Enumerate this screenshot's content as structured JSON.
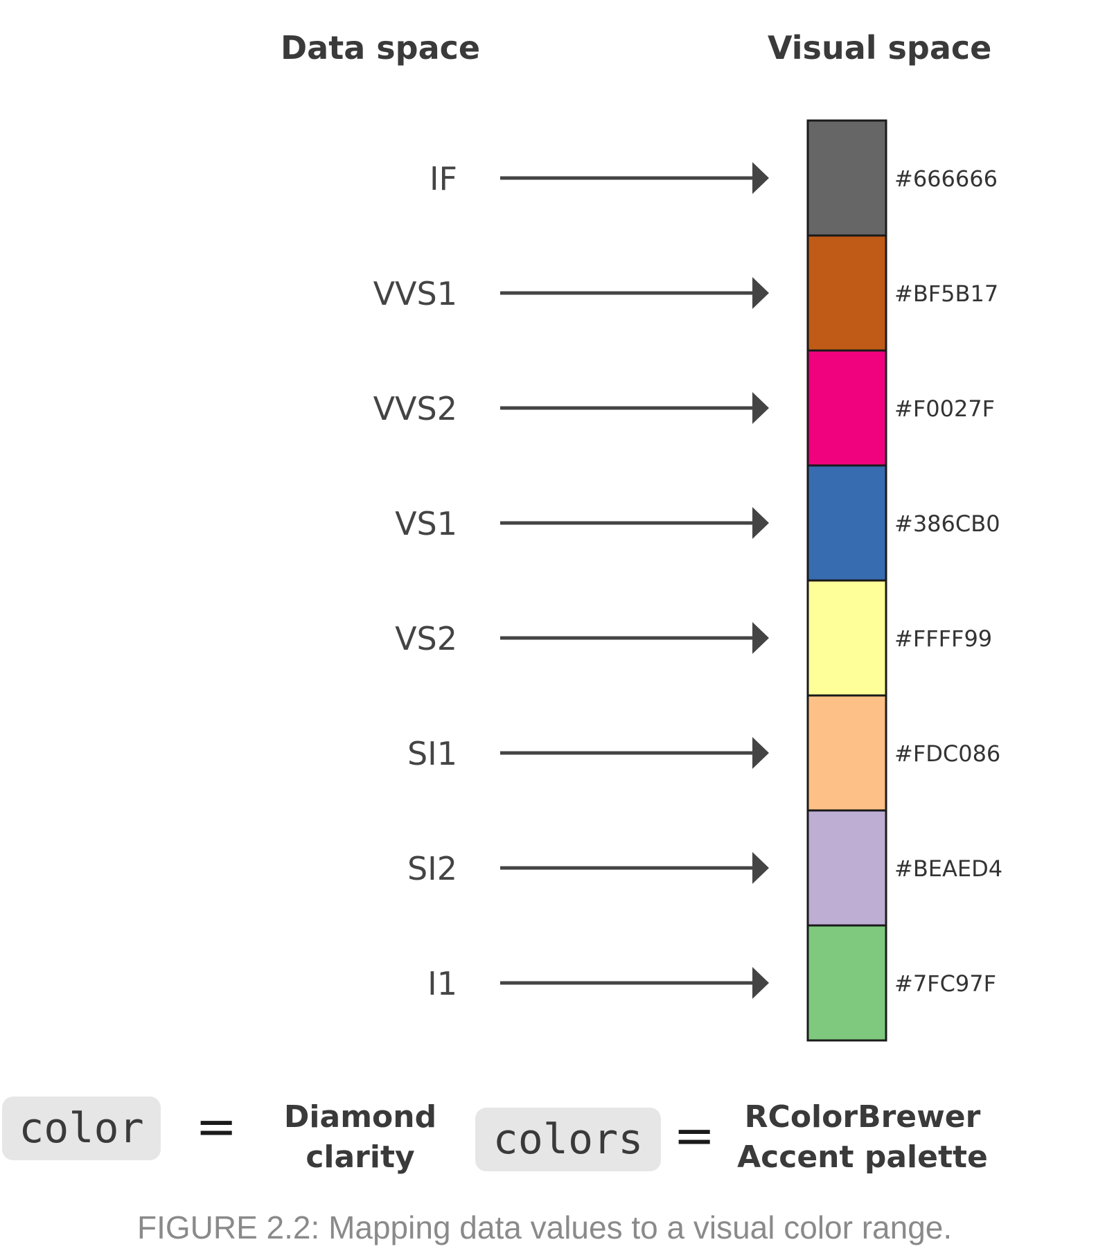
{
  "headings": {
    "data_space": "Data space",
    "visual_space": "Visual space"
  },
  "mapping": [
    {
      "value": "IF",
      "hex": "#666666"
    },
    {
      "value": "VVS1",
      "hex": "#BF5B17"
    },
    {
      "value": "VVS2",
      "hex": "#F0027F"
    },
    {
      "value": "VS1",
      "hex": "#386CB0"
    },
    {
      "value": "VS2",
      "hex": "#FFFF99"
    },
    {
      "value": "SI1",
      "hex": "#FDC086"
    },
    {
      "value": "SI2",
      "hex": "#BEAED4"
    },
    {
      "value": "I1",
      "hex": "#7FC97F"
    }
  ],
  "legend": {
    "left_code": "color",
    "left_equals": "=",
    "left_label_line1": "Diamond",
    "left_label_line2": "clarity",
    "right_code": "colors",
    "right_equals": "=",
    "right_label_line1": "RColorBrewer",
    "right_label_line2": "Accent palette"
  },
  "caption": "FIGURE 2.2: Mapping data values to a visual color range."
}
